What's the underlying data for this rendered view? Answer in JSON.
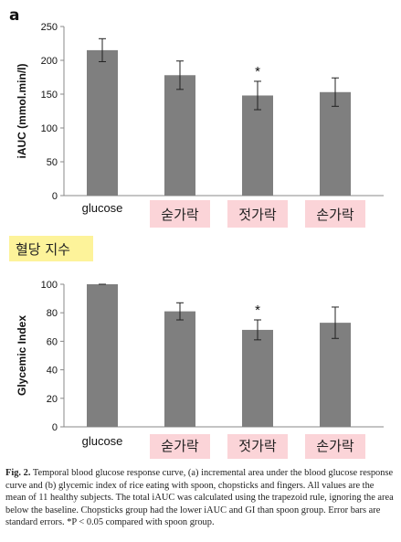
{
  "chart_data": [
    {
      "panel_label": "a",
      "type": "bar",
      "ylabel": "iAUC (mmol.min/l)",
      "ylim": [
        0,
        250
      ],
      "yticks": [
        0,
        50,
        100,
        150,
        200,
        250
      ],
      "grid": false,
      "categories": [
        "glucose",
        "숟가락",
        "젓가락",
        "손가락"
      ],
      "values": [
        215,
        178,
        148,
        153
      ],
      "errors": [
        17,
        21,
        21,
        21
      ],
      "significance": [
        "",
        "",
        "*",
        ""
      ],
      "bar_color": "#7f7f7f",
      "category_highlight": [
        false,
        true,
        true,
        true
      ],
      "highlight_color": "#fbd4d8"
    },
    {
      "type": "bar",
      "ylabel": "Glycemic Index",
      "ylim": [
        0,
        100
      ],
      "yticks": [
        0,
        20,
        40,
        60,
        80,
        100
      ],
      "grid": false,
      "categories": [
        "glucose",
        "숟가락",
        "젓가락",
        "손가락"
      ],
      "values": [
        100,
        81,
        68,
        73
      ],
      "errors": [
        0,
        6,
        7,
        11
      ],
      "significance": [
        "",
        "",
        "*",
        ""
      ],
      "bar_color": "#7f7f7f",
      "category_highlight": [
        false,
        true,
        true,
        true
      ],
      "highlight_color": "#fbd4d8"
    }
  ],
  "middle_label": {
    "text": "혈당 지수",
    "color": "#fdf39a"
  },
  "caption": {
    "label": "Fig. 2.",
    "text": "Temporal blood glucose response curve, (a) incremental area under the blood glucose response curve and (b) glycemic index of rice eating with spoon, chopsticks and fingers. All values are the mean of 11 healthy subjects. The total iAUC was calculated using the trapezoid rule, ignoring the area below the baseline. Chopsticks group had the lower iAUC and GI than spoon group. Error bars are standard errors. *P < 0.05 compared with spoon group."
  }
}
